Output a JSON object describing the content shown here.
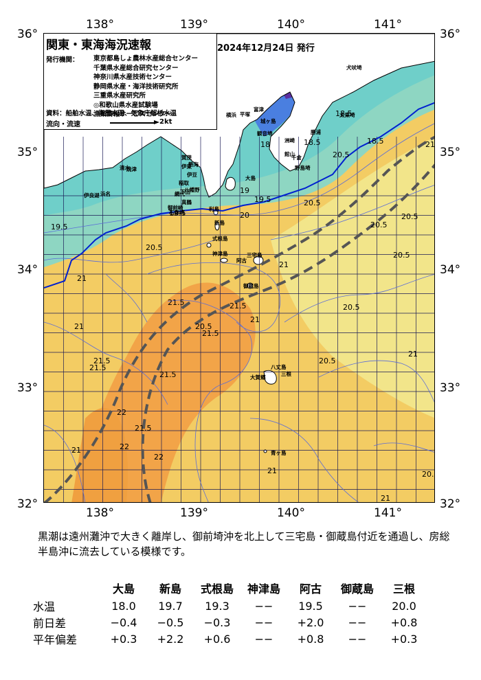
{
  "map": {
    "title": "関東・東海海況速報",
    "issue_date": "2024年12月24日 発行",
    "issuer_label": "発行機関：",
    "issuers": [
      "東京都島しょ農林水産総合センター",
      "千葉県水産総合研究センター",
      "神奈川県水産技術センター",
      "静岡県水産・海洋技術研究所",
      "三重県水産研究所",
      "◎和歌山県水産試験場",
      "漁業情報サービスセンター"
    ],
    "source": "資料：船舶水温、衛星水温、気象庁解析水温",
    "flow_label": "流向・流速",
    "flow_scale": "2kt",
    "lon_labels": [
      "138°",
      "139°",
      "140°",
      "141°"
    ],
    "lat_labels": [
      "36°",
      "35°",
      "34°",
      "33°",
      "32°"
    ],
    "place_names": [
      "犬吠埼",
      "太東埼",
      "勝浦",
      "洲崎",
      "千倉",
      "野島埼",
      "館山",
      "大島",
      "利島",
      "新島",
      "式根島",
      "神津島",
      "三宅島",
      "阿古",
      "御蔵島",
      "八丈島",
      "三根",
      "大賀郷",
      "青ヶ島",
      "平塚",
      "城ヶ島",
      "観音埼",
      "富津",
      "横浜",
      "小田原",
      "熱海",
      "伊東",
      "伊豆",
      "下田",
      "清水",
      "御前崎",
      "焼津",
      "浜名",
      "伊良湖",
      "石廊崎",
      "賀茂",
      "稲取",
      "八幡野",
      "網代",
      "真鶴"
    ],
    "temperature_labels": [
      {
        "t": "18.5"
      },
      {
        "t": "18.5"
      },
      {
        "t": "18.5"
      },
      {
        "t": "18"
      },
      {
        "t": "19"
      },
      {
        "t": "19.5"
      },
      {
        "t": "19.5"
      },
      {
        "t": "19.5"
      },
      {
        "t": "20"
      },
      {
        "t": "20.5"
      },
      {
        "t": "20.5"
      },
      {
        "t": "20.5"
      },
      {
        "t": "20.5"
      },
      {
        "t": "20.5"
      },
      {
        "t": "20.5"
      },
      {
        "t": "21"
      },
      {
        "t": "21"
      },
      {
        "t": "21"
      },
      {
        "t": "21"
      },
      {
        "t": "21"
      },
      {
        "t": "21.5"
      },
      {
        "t": "21.5"
      },
      {
        "t": "21.5"
      },
      {
        "t": "21.5"
      },
      {
        "t": "21.5"
      },
      {
        "t": "21.5"
      },
      {
        "t": "22"
      },
      {
        "t": "22"
      },
      {
        "t": "22"
      },
      {
        "t": "20.5"
      },
      {
        "t": "21"
      },
      {
        "t": "21"
      },
      {
        "t": "21.5"
      },
      {
        "t": "20.5"
      },
      {
        "t": "20.5"
      },
      {
        "t": "21"
      },
      {
        "t": "20."
      },
      {
        "t": "21"
      }
    ]
  },
  "caption": "黒潮は遠州灘沖で大きく離岸し、御前埼沖を北上して三宅島・御蔵島付近を通過し、房総半島沖に流去している模様です。",
  "table": {
    "columns": [
      "大島",
      "新島",
      "式根島",
      "神津島",
      "阿古",
      "御蔵島",
      "三根"
    ],
    "rows": [
      {
        "label": "水温",
        "values": [
          "18.0",
          "19.7",
          "19.3",
          "−−",
          "19.5",
          "−−",
          "20.0"
        ]
      },
      {
        "label": "前日差",
        "values": [
          "−0.4",
          "−0.5",
          "−0.3",
          "−−",
          "+2.0",
          "−−",
          "+0.8"
        ]
      },
      {
        "label": "平年偏差",
        "values": [
          "+0.3",
          "+2.2",
          "+0.6",
          "−−",
          "+0.8",
          "−−",
          "+0.3"
        ]
      }
    ]
  }
}
